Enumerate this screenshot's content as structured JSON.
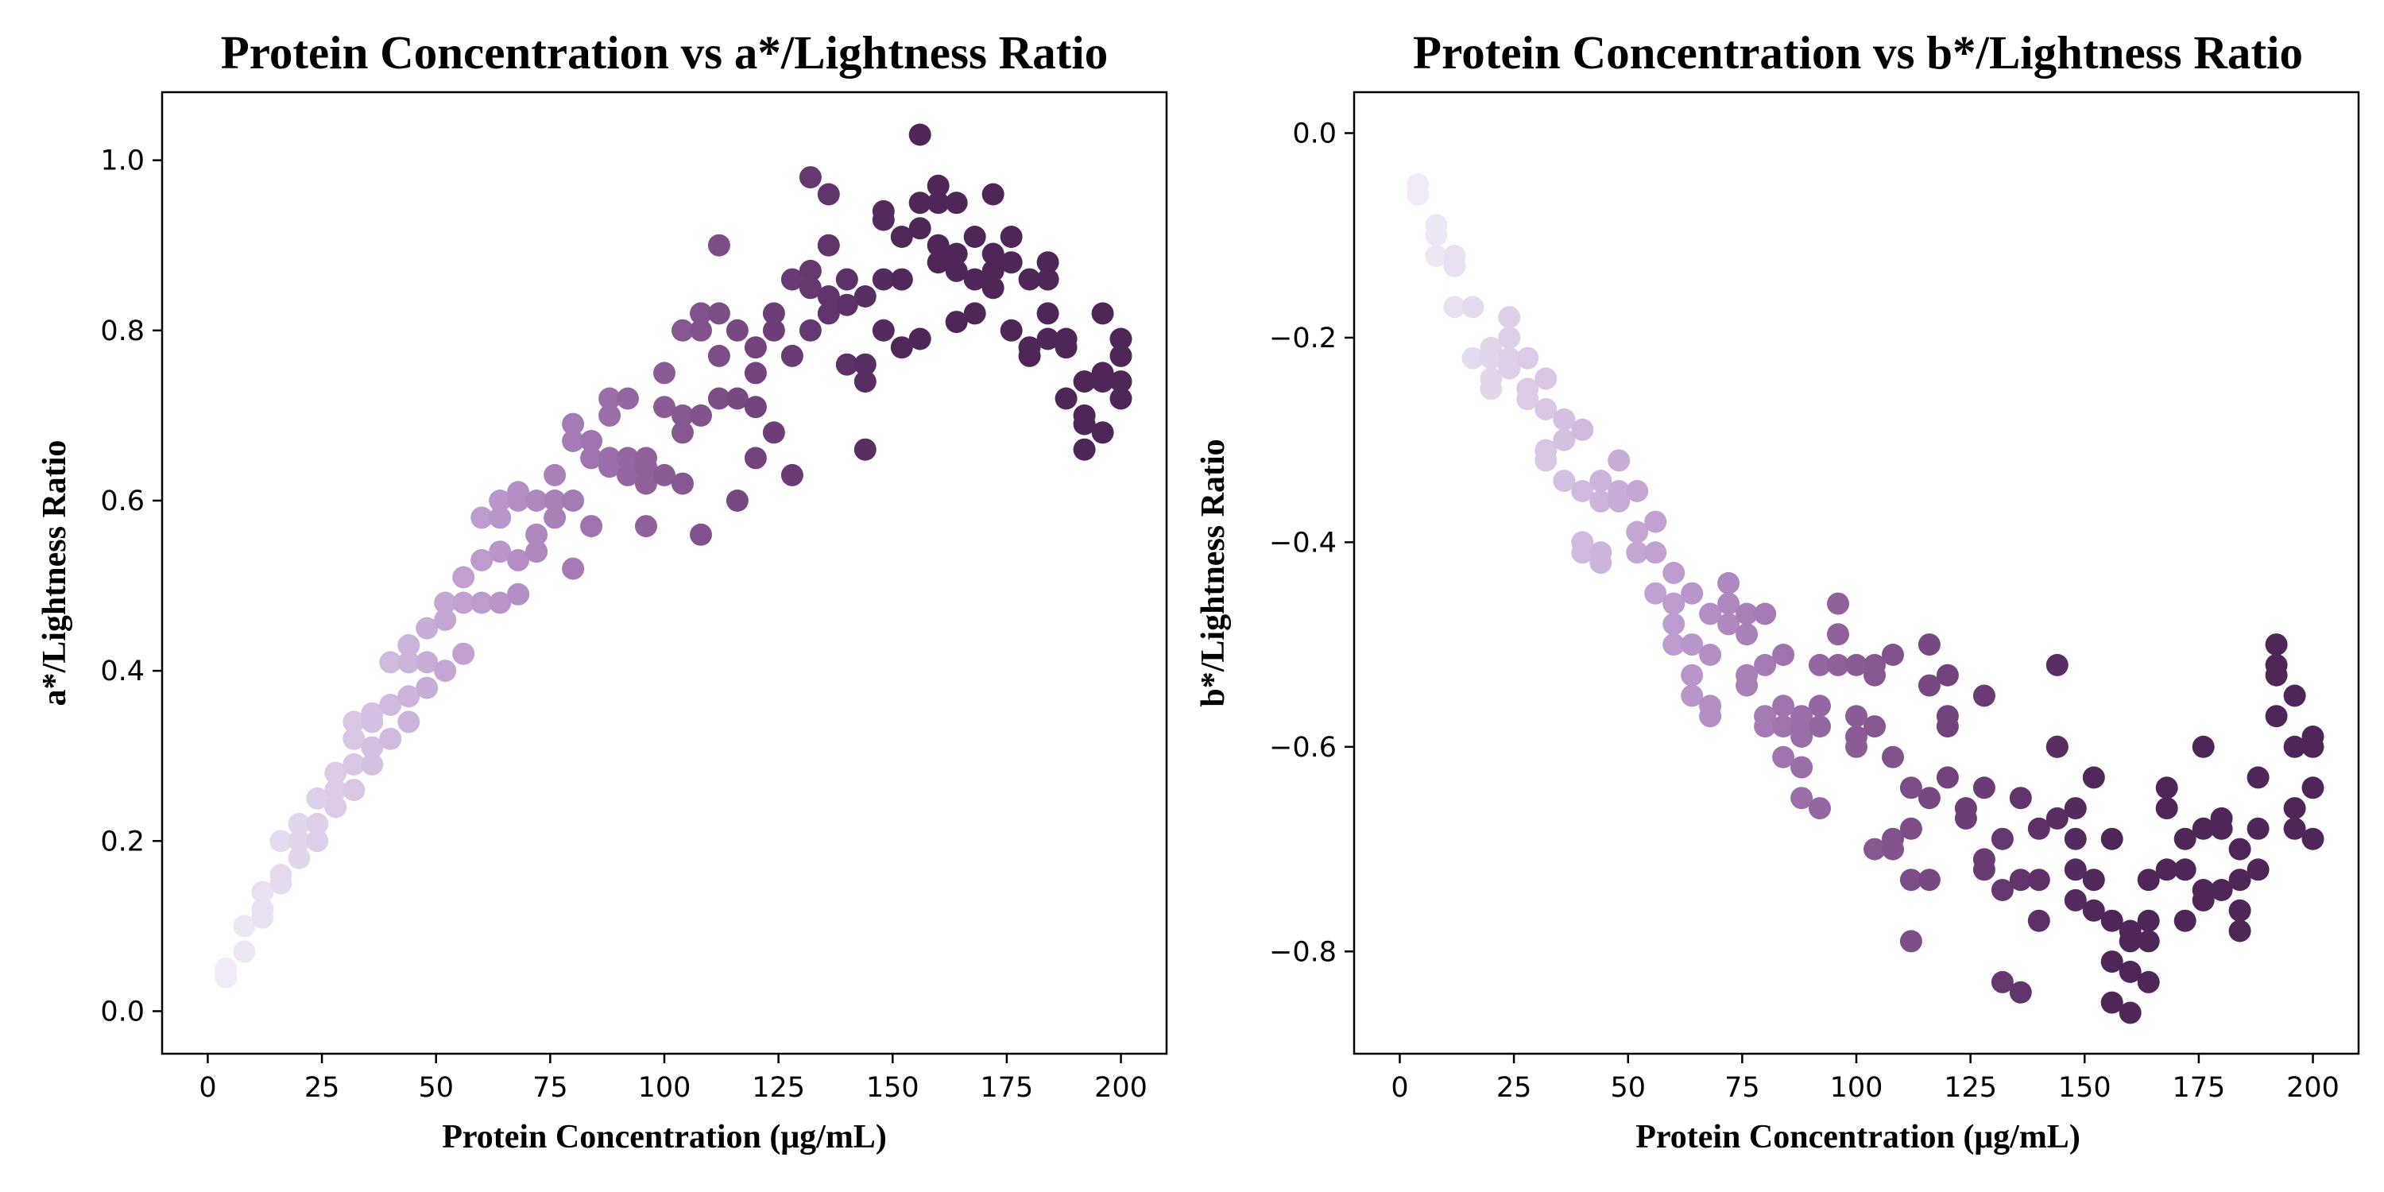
{
  "chart_data": [
    {
      "type": "scatter",
      "title": "Protein Concentration vs a*/Lightness Ratio",
      "xlabel": "Protein Concentration (μg/mL)",
      "ylabel": "a*/Lightness Ratio",
      "xlim": [
        -10,
        210
      ],
      "ylim": [
        -0.05,
        1.08
      ],
      "xticks": [
        0,
        25,
        50,
        75,
        100,
        125,
        150,
        175,
        200
      ],
      "yticks": [
        0.0,
        0.2,
        0.4,
        0.6,
        0.8,
        1.0
      ],
      "ytick_labels": [
        "0.0",
        "0.2",
        "0.4",
        "0.6",
        "0.8",
        "1.0"
      ],
      "colormap": [
        "#f0ebf6",
        "#d6c3e2",
        "#b895cb",
        "#93649f",
        "#6e3e79",
        "#4e2657"
      ],
      "grid": false,
      "points": [
        [
          4,
          0.04
        ],
        [
          4,
          0.05
        ],
        [
          8,
          0.07
        ],
        [
          8,
          0.1
        ],
        [
          12,
          0.11
        ],
        [
          12,
          0.12
        ],
        [
          12,
          0.14
        ],
        [
          16,
          0.15
        ],
        [
          16,
          0.16
        ],
        [
          16,
          0.2
        ],
        [
          16,
          0.2
        ],
        [
          20,
          0.18
        ],
        [
          20,
          0.2
        ],
        [
          20,
          0.22
        ],
        [
          24,
          0.2
        ],
        [
          24,
          0.22
        ],
        [
          24,
          0.25
        ],
        [
          28,
          0.24
        ],
        [
          28,
          0.26
        ],
        [
          28,
          0.28
        ],
        [
          32,
          0.26
        ],
        [
          32,
          0.29
        ],
        [
          32,
          0.32
        ],
        [
          32,
          0.34
        ],
        [
          36,
          0.29
        ],
        [
          36,
          0.31
        ],
        [
          36,
          0.34
        ],
        [
          36,
          0.35
        ],
        [
          40,
          0.32
        ],
        [
          40,
          0.36
        ],
        [
          40,
          0.41
        ],
        [
          44,
          0.34
        ],
        [
          44,
          0.37
        ],
        [
          44,
          0.41
        ],
        [
          44,
          0.43
        ],
        [
          48,
          0.38
        ],
        [
          48,
          0.41
        ],
        [
          48,
          0.45
        ],
        [
          52,
          0.4
        ],
        [
          52,
          0.46
        ],
        [
          52,
          0.48
        ],
        [
          56,
          0.42
        ],
        [
          56,
          0.48
        ],
        [
          56,
          0.51
        ],
        [
          60,
          0.48
        ],
        [
          60,
          0.53
        ],
        [
          60,
          0.58
        ],
        [
          64,
          0.48
        ],
        [
          64,
          0.54
        ],
        [
          64,
          0.58
        ],
        [
          64,
          0.6
        ],
        [
          68,
          0.49
        ],
        [
          68,
          0.53
        ],
        [
          68,
          0.6
        ],
        [
          68,
          0.61
        ],
        [
          72,
          0.54
        ],
        [
          72,
          0.56
        ],
        [
          72,
          0.6
        ],
        [
          76,
          0.58
        ],
        [
          76,
          0.6
        ],
        [
          76,
          0.63
        ],
        [
          80,
          0.52
        ],
        [
          80,
          0.6
        ],
        [
          80,
          0.67
        ],
        [
          80,
          0.69
        ],
        [
          84,
          0.57
        ],
        [
          84,
          0.65
        ],
        [
          84,
          0.67
        ],
        [
          88,
          0.64
        ],
        [
          88,
          0.65
        ],
        [
          88,
          0.7
        ],
        [
          88,
          0.72
        ],
        [
          92,
          0.63
        ],
        [
          92,
          0.65
        ],
        [
          92,
          0.72
        ],
        [
          96,
          0.57
        ],
        [
          96,
          0.62
        ],
        [
          96,
          0.64
        ],
        [
          96,
          0.65
        ],
        [
          100,
          0.63
        ],
        [
          100,
          0.71
        ],
        [
          100,
          0.75
        ],
        [
          104,
          0.62
        ],
        [
          104,
          0.68
        ],
        [
          104,
          0.7
        ],
        [
          104,
          0.8
        ],
        [
          108,
          0.56
        ],
        [
          108,
          0.7
        ],
        [
          108,
          0.8
        ],
        [
          108,
          0.82
        ],
        [
          112,
          0.72
        ],
        [
          112,
          0.77
        ],
        [
          112,
          0.82
        ],
        [
          112,
          0.9
        ],
        [
          116,
          0.6
        ],
        [
          116,
          0.72
        ],
        [
          116,
          0.8
        ],
        [
          120,
          0.65
        ],
        [
          120,
          0.71
        ],
        [
          120,
          0.75
        ],
        [
          120,
          0.78
        ],
        [
          124,
          0.68
        ],
        [
          124,
          0.8
        ],
        [
          124,
          0.82
        ],
        [
          128,
          0.63
        ],
        [
          128,
          0.77
        ],
        [
          128,
          0.86
        ],
        [
          132,
          0.8
        ],
        [
          132,
          0.85
        ],
        [
          132,
          0.87
        ],
        [
          132,
          0.98
        ],
        [
          136,
          0.82
        ],
        [
          136,
          0.84
        ],
        [
          136,
          0.9
        ],
        [
          136,
          0.96
        ],
        [
          140,
          0.76
        ],
        [
          140,
          0.83
        ],
        [
          140,
          0.86
        ],
        [
          144,
          0.66
        ],
        [
          144,
          0.74
        ],
        [
          144,
          0.76
        ],
        [
          144,
          0.84
        ],
        [
          148,
          0.8
        ],
        [
          148,
          0.86
        ],
        [
          148,
          0.93
        ],
        [
          148,
          0.94
        ],
        [
          152,
          0.78
        ],
        [
          152,
          0.86
        ],
        [
          152,
          0.91
        ],
        [
          156,
          0.79
        ],
        [
          156,
          0.92
        ],
        [
          156,
          0.95
        ],
        [
          156,
          1.03
        ],
        [
          160,
          0.88
        ],
        [
          160,
          0.9
        ],
        [
          160,
          0.95
        ],
        [
          160,
          0.97
        ],
        [
          164,
          0.81
        ],
        [
          164,
          0.87
        ],
        [
          164,
          0.89
        ],
        [
          164,
          0.95
        ],
        [
          168,
          0.82
        ],
        [
          168,
          0.86
        ],
        [
          168,
          0.91
        ],
        [
          172,
          0.85
        ],
        [
          172,
          0.87
        ],
        [
          172,
          0.89
        ],
        [
          172,
          0.96
        ],
        [
          176,
          0.8
        ],
        [
          176,
          0.88
        ],
        [
          176,
          0.91
        ],
        [
          180,
          0.77
        ],
        [
          180,
          0.78
        ],
        [
          180,
          0.86
        ],
        [
          184,
          0.79
        ],
        [
          184,
          0.82
        ],
        [
          184,
          0.86
        ],
        [
          184,
          0.88
        ],
        [
          188,
          0.72
        ],
        [
          188,
          0.78
        ],
        [
          188,
          0.79
        ],
        [
          192,
          0.66
        ],
        [
          192,
          0.69
        ],
        [
          192,
          0.7
        ],
        [
          192,
          0.74
        ],
        [
          196,
          0.68
        ],
        [
          196,
          0.74
        ],
        [
          196,
          0.75
        ],
        [
          196,
          0.82
        ],
        [
          200,
          0.72
        ],
        [
          200,
          0.74
        ],
        [
          200,
          0.77
        ],
        [
          200,
          0.79
        ]
      ]
    },
    {
      "type": "scatter",
      "title": "Protein Concentration vs b*/Lightness Ratio",
      "xlabel": "Protein Concentration (μg/mL)",
      "ylabel": "b*/Lightness Ratio",
      "xlim": [
        -10,
        210
      ],
      "ylim": [
        -0.9,
        0.04
      ],
      "xticks": [
        0,
        25,
        50,
        75,
        100,
        125,
        150,
        175,
        200
      ],
      "yticks": [
        -0.8,
        -0.6,
        -0.4,
        -0.2,
        0.0
      ],
      "ytick_labels": [
        "−0.8",
        "−0.6",
        "−0.4",
        "−0.2",
        "0.0"
      ],
      "colormap": [
        "#f0ebf6",
        "#d6c3e2",
        "#b895cb",
        "#93649f",
        "#6e3e79",
        "#4e2657"
      ],
      "grid": false,
      "points": [
        [
          4,
          -0.05
        ],
        [
          4,
          -0.06
        ],
        [
          8,
          -0.09
        ],
        [
          8,
          -0.1
        ],
        [
          8,
          -0.12
        ],
        [
          12,
          -0.12
        ],
        [
          12,
          -0.13
        ],
        [
          12,
          -0.17
        ],
        [
          16,
          -0.17
        ],
        [
          16,
          -0.22
        ],
        [
          20,
          -0.21
        ],
        [
          20,
          -0.22
        ],
        [
          20,
          -0.24
        ],
        [
          20,
          -0.25
        ],
        [
          24,
          -0.18
        ],
        [
          24,
          -0.2
        ],
        [
          24,
          -0.22
        ],
        [
          24,
          -0.23
        ],
        [
          28,
          -0.22
        ],
        [
          28,
          -0.25
        ],
        [
          28,
          -0.26
        ],
        [
          32,
          -0.24
        ],
        [
          32,
          -0.27
        ],
        [
          32,
          -0.31
        ],
        [
          32,
          -0.32
        ],
        [
          36,
          -0.28
        ],
        [
          36,
          -0.3
        ],
        [
          36,
          -0.34
        ],
        [
          40,
          -0.29
        ],
        [
          40,
          -0.35
        ],
        [
          40,
          -0.4
        ],
        [
          40,
          -0.41
        ],
        [
          44,
          -0.34
        ],
        [
          44,
          -0.36
        ],
        [
          44,
          -0.41
        ],
        [
          44,
          -0.42
        ],
        [
          48,
          -0.32
        ],
        [
          48,
          -0.35
        ],
        [
          48,
          -0.36
        ],
        [
          52,
          -0.35
        ],
        [
          52,
          -0.39
        ],
        [
          52,
          -0.41
        ],
        [
          56,
          -0.38
        ],
        [
          56,
          -0.41
        ],
        [
          56,
          -0.45
        ],
        [
          60,
          -0.43
        ],
        [
          60,
          -0.46
        ],
        [
          60,
          -0.48
        ],
        [
          60,
          -0.5
        ],
        [
          64,
          -0.45
        ],
        [
          64,
          -0.5
        ],
        [
          64,
          -0.53
        ],
        [
          64,
          -0.55
        ],
        [
          68,
          -0.47
        ],
        [
          68,
          -0.51
        ],
        [
          68,
          -0.56
        ],
        [
          68,
          -0.57
        ],
        [
          72,
          -0.44
        ],
        [
          72,
          -0.46
        ],
        [
          72,
          -0.48
        ],
        [
          76,
          -0.47
        ],
        [
          76,
          -0.49
        ],
        [
          76,
          -0.53
        ],
        [
          76,
          -0.54
        ],
        [
          80,
          -0.47
        ],
        [
          80,
          -0.52
        ],
        [
          80,
          -0.57
        ],
        [
          80,
          -0.58
        ],
        [
          84,
          -0.51
        ],
        [
          84,
          -0.56
        ],
        [
          84,
          -0.58
        ],
        [
          84,
          -0.61
        ],
        [
          88,
          -0.57
        ],
        [
          88,
          -0.58
        ],
        [
          88,
          -0.59
        ],
        [
          88,
          -0.62
        ],
        [
          88,
          -0.65
        ],
        [
          92,
          -0.52
        ],
        [
          92,
          -0.56
        ],
        [
          92,
          -0.58
        ],
        [
          92,
          -0.66
        ],
        [
          96,
          -0.46
        ],
        [
          96,
          -0.49
        ],
        [
          96,
          -0.52
        ],
        [
          100,
          -0.52
        ],
        [
          100,
          -0.57
        ],
        [
          100,
          -0.59
        ],
        [
          100,
          -0.6
        ],
        [
          104,
          -0.52
        ],
        [
          104,
          -0.53
        ],
        [
          104,
          -0.58
        ],
        [
          104,
          -0.7
        ],
        [
          108,
          -0.51
        ],
        [
          108,
          -0.61
        ],
        [
          108,
          -0.69
        ],
        [
          108,
          -0.7
        ],
        [
          112,
          -0.64
        ],
        [
          112,
          -0.68
        ],
        [
          112,
          -0.73
        ],
        [
          112,
          -0.79
        ],
        [
          116,
          -0.5
        ],
        [
          116,
          -0.54
        ],
        [
          116,
          -0.65
        ],
        [
          116,
          -0.73
        ],
        [
          120,
          -0.53
        ],
        [
          120,
          -0.57
        ],
        [
          120,
          -0.58
        ],
        [
          120,
          -0.63
        ],
        [
          124,
          -0.66
        ],
        [
          124,
          -0.67
        ],
        [
          128,
          -0.55
        ],
        [
          128,
          -0.64
        ],
        [
          128,
          -0.71
        ],
        [
          128,
          -0.72
        ],
        [
          132,
          -0.69
        ],
        [
          132,
          -0.74
        ],
        [
          132,
          -0.83
        ],
        [
          136,
          -0.65
        ],
        [
          136,
          -0.73
        ],
        [
          136,
          -0.84
        ],
        [
          140,
          -0.68
        ],
        [
          140,
          -0.73
        ],
        [
          140,
          -0.77
        ],
        [
          144,
          -0.52
        ],
        [
          144,
          -0.6
        ],
        [
          144,
          -0.6
        ],
        [
          144,
          -0.67
        ],
        [
          148,
          -0.66
        ],
        [
          148,
          -0.69
        ],
        [
          148,
          -0.72
        ],
        [
          148,
          -0.75
        ],
        [
          152,
          -0.63
        ],
        [
          152,
          -0.73
        ],
        [
          152,
          -0.76
        ],
        [
          156,
          -0.69
        ],
        [
          156,
          -0.77
        ],
        [
          156,
          -0.81
        ],
        [
          156,
          -0.85
        ],
        [
          160,
          -0.78
        ],
        [
          160,
          -0.79
        ],
        [
          160,
          -0.82
        ],
        [
          160,
          -0.86
        ],
        [
          164,
          -0.73
        ],
        [
          164,
          -0.77
        ],
        [
          164,
          -0.79
        ],
        [
          164,
          -0.83
        ],
        [
          168,
          -0.64
        ],
        [
          168,
          -0.66
        ],
        [
          168,
          -0.72
        ],
        [
          172,
          -0.69
        ],
        [
          172,
          -0.72
        ],
        [
          172,
          -0.77
        ],
        [
          176,
          -0.6
        ],
        [
          176,
          -0.68
        ],
        [
          176,
          -0.74
        ],
        [
          176,
          -0.75
        ],
        [
          180,
          -0.67
        ],
        [
          180,
          -0.68
        ],
        [
          180,
          -0.74
        ],
        [
          184,
          -0.7
        ],
        [
          184,
          -0.73
        ],
        [
          184,
          -0.76
        ],
        [
          184,
          -0.78
        ],
        [
          188,
          -0.63
        ],
        [
          188,
          -0.68
        ],
        [
          188,
          -0.72
        ],
        [
          192,
          -0.5
        ],
        [
          192,
          -0.52
        ],
        [
          192,
          -0.53
        ],
        [
          192,
          -0.57
        ],
        [
          196,
          -0.55
        ],
        [
          196,
          -0.6
        ],
        [
          196,
          -0.66
        ],
        [
          196,
          -0.68
        ],
        [
          200,
          -0.59
        ],
        [
          200,
          -0.6
        ],
        [
          200,
          -0.64
        ],
        [
          200,
          -0.69
        ]
      ]
    }
  ]
}
